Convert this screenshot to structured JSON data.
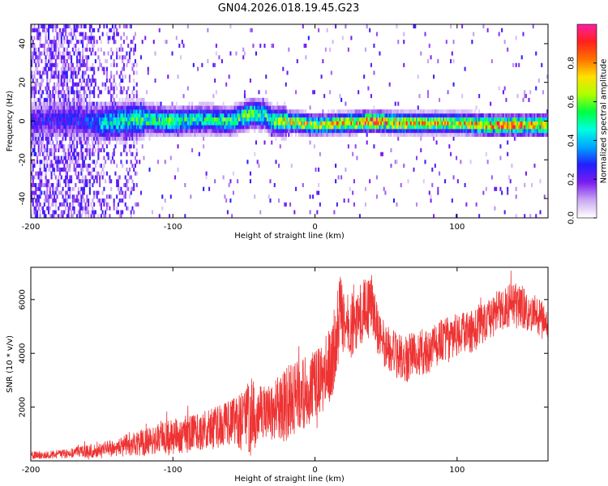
{
  "title": "GN04.2026.018.19.45.G23",
  "chart_data": [
    {
      "type": "heatmap",
      "name": "spectrogram",
      "xlabel": "Height of straight line (km)",
      "ylabel": "Frequency (Hz)",
      "xlim": [
        -200,
        164
      ],
      "ylim": [
        -50,
        50
      ],
      "xticks": [
        -200,
        -100,
        0,
        100
      ],
      "yticks": [
        -40,
        -20,
        0,
        20,
        40
      ],
      "colorbar": {
        "label": "Normalized spectral amplitude",
        "range": [
          0,
          1
        ],
        "ticks": [
          "0.0",
          "0.2",
          "0.4",
          "0.6",
          "0.8"
        ],
        "colors": [
          "#ffffff",
          "#c9a6f2",
          "#7a1cf0",
          "#2020ff",
          "#00a6ff",
          "#00ffe0",
          "#00ff40",
          "#b0ff00",
          "#ffe000",
          "#ff7000",
          "#ff2020",
          "#ff1fa8"
        ]
      },
      "ridge": {
        "x": [
          -200,
          -180,
          -160,
          -150,
          -140,
          -120,
          -100,
          -80,
          -60,
          -45,
          -35,
          -30,
          -20,
          -10,
          0,
          20,
          40,
          60,
          80,
          100,
          120,
          140,
          164
        ],
        "frequency": [
          0,
          1,
          0,
          -1,
          0,
          1,
          0,
          1,
          0,
          4,
          3,
          0,
          0,
          -1,
          -2,
          -1,
          0,
          -1,
          -1,
          -1,
          -2,
          -2,
          -2
        ]
      },
      "intensity": {
        "x": [
          -200,
          -160,
          -150,
          -120,
          -100,
          -80,
          -60,
          -45,
          -30,
          -20,
          0,
          20,
          40,
          60,
          80,
          100,
          120,
          140,
          164
        ],
        "amplitude": [
          0.25,
          0.3,
          0.45,
          0.55,
          0.55,
          0.5,
          0.55,
          0.6,
          0.55,
          0.75,
          0.7,
          0.8,
          0.95,
          0.8,
          0.75,
          0.75,
          0.85,
          0.9,
          0.85
        ]
      }
    },
    {
      "type": "line",
      "name": "snr",
      "xlabel": "Height of straight line (km)",
      "ylabel": "SNR (10 * v/v)",
      "xlim": [
        -200,
        164
      ],
      "ylim": [
        0,
        7200
      ],
      "xticks": [
        -200,
        -100,
        0,
        100
      ],
      "yticks": [
        2000,
        4000,
        6000
      ],
      "color": "#ee3333",
      "series": [
        {
          "name": "SNR",
          "x": [
            -200,
            -180,
            -160,
            -140,
            -120,
            -100,
            -80,
            -60,
            -50,
            -45,
            -40,
            -30,
            -20,
            -10,
            -5,
            0,
            5,
            10,
            15,
            18,
            20,
            25,
            30,
            35,
            40,
            42,
            45,
            50,
            55,
            60,
            65,
            70,
            80,
            90,
            100,
            110,
            120,
            130,
            140,
            150,
            160,
            164
          ],
          "center": [
            200,
            250,
            350,
            500,
            700,
            900,
            1100,
            1350,
            1500,
            1650,
            1700,
            1800,
            2200,
            2400,
            2600,
            2800,
            3000,
            3500,
            4500,
            5500,
            5300,
            5000,
            5200,
            5700,
            5600,
            5400,
            4600,
            4300,
            4000,
            3900,
            3800,
            4000,
            4100,
            4500,
            4700,
            4800,
            5200,
            5600,
            5900,
            5600,
            5300,
            5000
          ],
          "spread": [
            150,
            150,
            250,
            350,
            500,
            700,
            700,
            900,
            1100,
            1500,
            1100,
            1000,
            1500,
            1300,
            1400,
            1300,
            1300,
            1500,
            1600,
            1500,
            1300,
            1200,
            1200,
            1200,
            1100,
            900,
            900,
            900,
            900,
            900,
            900,
            800,
            900,
            800,
            800,
            800,
            800,
            800,
            800,
            800,
            700,
            700
          ]
        }
      ]
    }
  ]
}
